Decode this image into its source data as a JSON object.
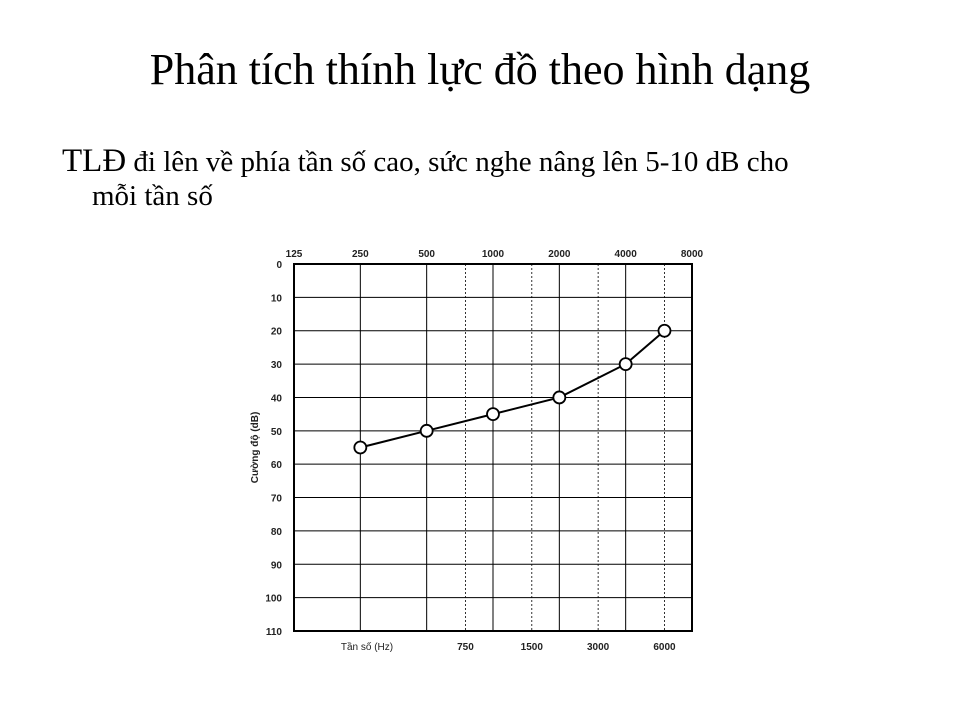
{
  "slide": {
    "title": "Phân tích thính lực đồ theo hình dạng",
    "bullet_lead": "TLĐ",
    "bullet_line1": " đi lên về phía tần số cao, sức nghe nâng lên 5-10 dB cho",
    "bullet_line2": "mỗi tần số"
  },
  "chart_data": {
    "type": "line",
    "title": "",
    "xlabel": "Tần số (Hz)",
    "ylabel": "Cường độ (dB)",
    "x_octave_ticks": [
      "125",
      "250",
      "500",
      "1000",
      "2000",
      "4000",
      "8000"
    ],
    "x_interoctave_ticks": [
      "750",
      "1500",
      "3000",
      "6000"
    ],
    "y_ticks": [
      "0",
      "10",
      "20",
      "30",
      "40",
      "50",
      "60",
      "70",
      "80",
      "90",
      "100",
      "110"
    ],
    "ylim": [
      0,
      110
    ],
    "y_inverted": true,
    "grid": true,
    "series": [
      {
        "x": [
          250,
          500,
          1000,
          2000,
          4000,
          6000
        ],
        "y": [
          55,
          50,
          45,
          40,
          30,
          20
        ]
      }
    ],
    "line_color": "#000000",
    "marker": "open-circle"
  }
}
